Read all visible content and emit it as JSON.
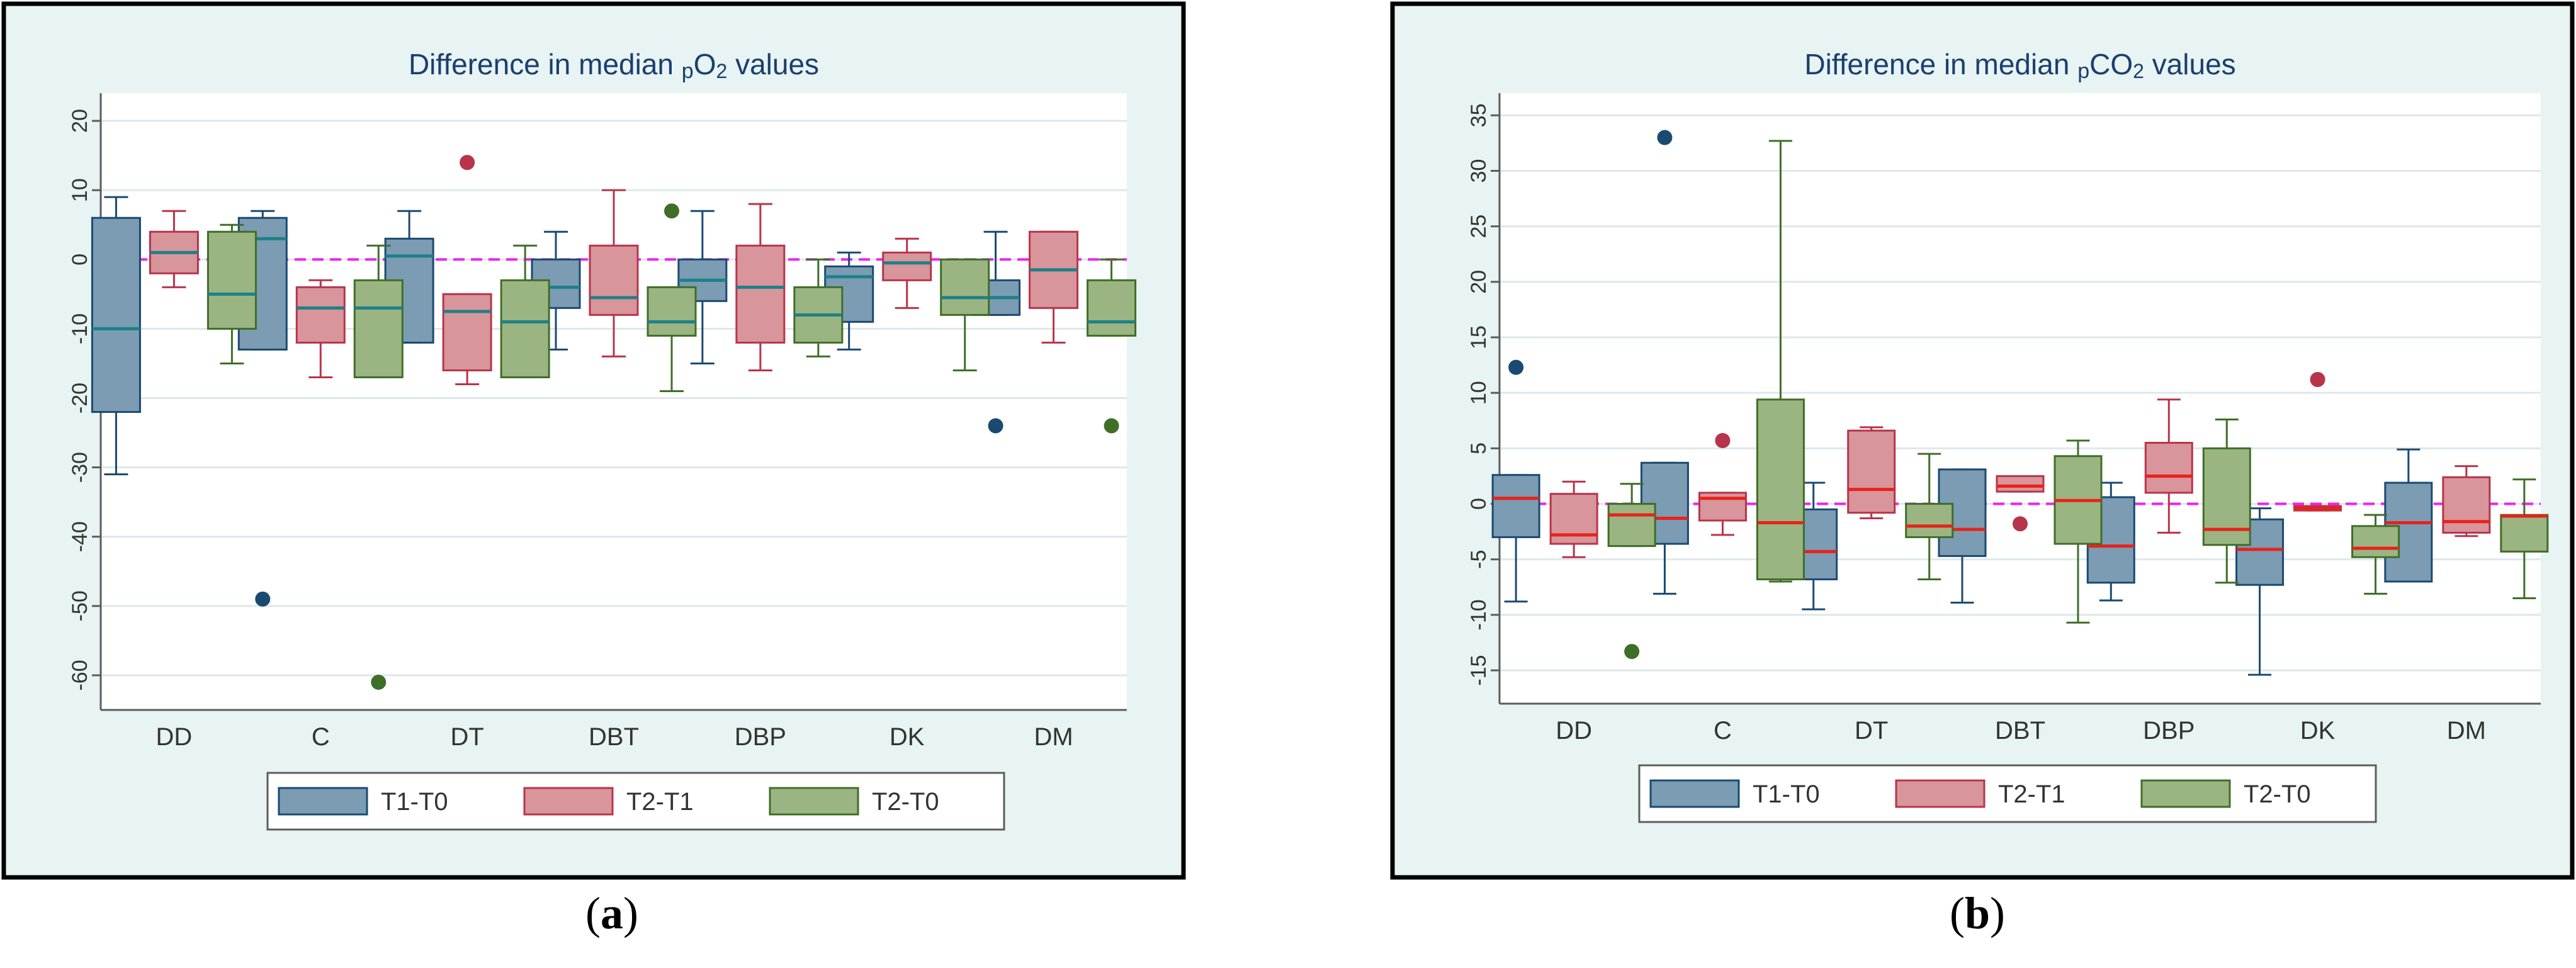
{
  "captions": [
    {
      "open": "(",
      "letter": "a",
      "close": ")"
    },
    {
      "open": "(",
      "letter": "b",
      "close": ")"
    }
  ],
  "colors": {
    "background": "#e8f3f3",
    "frame": "#000000",
    "grid": "#dfe7ea",
    "axis": "#5c5c5c",
    "reference_line": "#ee22ee",
    "series": [
      {
        "fill": "#7b9cb3",
        "stroke": "#1a4a72"
      },
      {
        "fill": "#d8959b",
        "stroke": "#b8344a"
      },
      {
        "fill": "#9bb582",
        "stroke": "#3f6e28"
      }
    ],
    "median_panel_a": "#1e8088",
    "median_panel_b": "#e8221a"
  },
  "chart_data": [
    {
      "type": "box",
      "title": "Difference in median pO2 values",
      "title_parts": {
        "prefix": "Difference in median ",
        "p": "p",
        "gas": "O",
        "sub": "2",
        "suffix": " values"
      },
      "ylim": [
        -65,
        24
      ],
      "yticks": [
        20,
        10,
        0,
        -10,
        -20,
        -30,
        -40,
        -50,
        -60
      ],
      "reference_line": 0,
      "categories": [
        "DD",
        "C",
        "DT",
        "DBT",
        "DBP",
        "DK",
        "DM"
      ],
      "legend": [
        "T1-T0",
        "T2-T1",
        "T2-T0"
      ],
      "series": [
        {
          "name": "T1-T0",
          "boxes": [
            {
              "min": -31,
              "q1": -22,
              "median": -10,
              "q3": 6,
              "max": 9,
              "outliers": []
            },
            {
              "min": -13,
              "q1": -13,
              "median": 3,
              "q3": 6,
              "max": 7,
              "outliers": [
                -49
              ]
            },
            {
              "min": -12,
              "q1": -12,
              "median": 0.5,
              "q3": 3,
              "max": 7,
              "outliers": []
            },
            {
              "min": -13,
              "q1": -7,
              "median": -4,
              "q3": 0,
              "max": 4,
              "outliers": []
            },
            {
              "min": -15,
              "q1": -6,
              "median": -3,
              "q3": 0,
              "max": 7,
              "outliers": []
            },
            {
              "min": -13,
              "q1": -9,
              "median": -2.5,
              "q3": -1,
              "max": 1,
              "outliers": []
            },
            {
              "min": -8,
              "q1": -8,
              "median": -5.5,
              "q3": -3,
              "max": 4,
              "outliers": [
                -24
              ]
            }
          ]
        },
        {
          "name": "T2-T1",
          "boxes": [
            {
              "min": -4,
              "q1": -2,
              "median": 1,
              "q3": 4,
              "max": 7,
              "outliers": []
            },
            {
              "min": -17,
              "q1": -12,
              "median": -7,
              "q3": -4,
              "max": -3,
              "outliers": []
            },
            {
              "min": -18,
              "q1": -16,
              "median": -7.5,
              "q3": -5,
              "max": -5,
              "outliers": [
                14
              ]
            },
            {
              "min": -14,
              "q1": -8,
              "median": -5.5,
              "q3": 2,
              "max": 10,
              "outliers": []
            },
            {
              "min": -16,
              "q1": -12,
              "median": -4,
              "q3": 2,
              "max": 8,
              "outliers": []
            },
            {
              "min": -7,
              "q1": -3,
              "median": -0.5,
              "q3": 1,
              "max": 3,
              "outliers": []
            },
            {
              "min": -12,
              "q1": -7,
              "median": -1.5,
              "q3": 4,
              "max": 4,
              "outliers": []
            }
          ]
        },
        {
          "name": "T2-T0",
          "boxes": [
            {
              "min": -15,
              "q1": -10,
              "median": -5,
              "q3": 4,
              "max": 5,
              "outliers": []
            },
            {
              "min": -17,
              "q1": -17,
              "median": -7,
              "q3": -3,
              "max": 2,
              "outliers": [
                -61
              ]
            },
            {
              "min": -17,
              "q1": -17,
              "median": -9,
              "q3": -3,
              "max": 2,
              "outliers": []
            },
            {
              "min": -19,
              "q1": -11,
              "median": -9,
              "q3": -4,
              "max": -4,
              "outliers": [
                7
              ]
            },
            {
              "min": -14,
              "q1": -12,
              "median": -8,
              "q3": -4,
              "max": 0,
              "outliers": []
            },
            {
              "min": -16,
              "q1": -8,
              "median": -5.5,
              "q3": 0,
              "max": 0,
              "outliers": []
            },
            {
              "min": -11,
              "q1": -11,
              "median": -9,
              "q3": -3,
              "max": 0,
              "outliers": [
                -24
              ]
            }
          ]
        }
      ]
    },
    {
      "type": "box",
      "title": "Difference in median pCO2 values",
      "title_parts": {
        "prefix": "Difference in median ",
        "p": "p",
        "gas": "CO",
        "sub": "2",
        "suffix": " values"
      },
      "ylim": [
        -18,
        37
      ],
      "yticks": [
        35,
        30,
        25,
        20,
        15,
        10,
        5,
        0,
        -5,
        -10,
        -15
      ],
      "reference_line": 0,
      "categories": [
        "DD",
        "C",
        "DT",
        "DBT",
        "DBP",
        "DK",
        "DM"
      ],
      "legend": [
        "T1-T0",
        "T2-T1",
        "T2-T0"
      ],
      "series": [
        {
          "name": "T1-T0",
          "boxes": [
            {
              "min": -8.8,
              "q1": -3,
              "median": 0.5,
              "q3": 2.6,
              "max": 2.6,
              "outliers": [
                12.3
              ]
            },
            {
              "min": -8.1,
              "q1": -3.6,
              "median": -1.3,
              "q3": 3.7,
              "max": 3.7,
              "outliers": [
                33
              ]
            },
            {
              "min": -9.5,
              "q1": -6.8,
              "median": -4.3,
              "q3": -0.5,
              "max": 1.9,
              "outliers": []
            },
            {
              "min": -8.9,
              "q1": -4.7,
              "median": -2.3,
              "q3": 3.1,
              "max": 3.1,
              "outliers": []
            },
            {
              "min": -8.7,
              "q1": -7.1,
              "median": -3.8,
              "q3": 0.6,
              "max": 1.9,
              "outliers": []
            },
            {
              "min": -15.4,
              "q1": -7.3,
              "median": -4.1,
              "q3": -1.4,
              "max": -0.4,
              "outliers": []
            },
            {
              "min": -7,
              "q1": -7,
              "median": -1.7,
              "q3": 1.9,
              "max": 4.9,
              "outliers": []
            }
          ]
        },
        {
          "name": "T2-T1",
          "boxes": [
            {
              "min": -4.8,
              "q1": -3.6,
              "median": -2.8,
              "q3": 0.9,
              "max": 2,
              "outliers": []
            },
            {
              "min": -2.8,
              "q1": -1.5,
              "median": 0.5,
              "q3": 1,
              "max": 1,
              "outliers": [
                5.7
              ]
            },
            {
              "min": -1.3,
              "q1": -0.8,
              "median": 1.3,
              "q3": 6.6,
              "max": 6.9,
              "outliers": []
            },
            {
              "min": 1.1,
              "q1": 1.1,
              "median": 1.6,
              "q3": 2.5,
              "max": 2.5,
              "outliers": [
                -1.8
              ]
            },
            {
              "min": -2.6,
              "q1": 1,
              "median": 2.5,
              "q3": 5.5,
              "max": 9.4,
              "outliers": []
            },
            {
              "min": -0.6,
              "q1": -0.6,
              "median": -0.4,
              "q3": -0.2,
              "max": -0.2,
              "outliers": [
                11.2
              ]
            },
            {
              "min": -2.9,
              "q1": -2.6,
              "median": -1.6,
              "q3": 2.4,
              "max": 3.4,
              "outliers": []
            }
          ]
        },
        {
          "name": "T2-T0",
          "boxes": [
            {
              "min": -3.8,
              "q1": -3.8,
              "median": -1,
              "q3": 0,
              "max": 1.8,
              "outliers": [
                -13.3
              ]
            },
            {
              "min": -7,
              "q1": -6.8,
              "median": -1.7,
              "q3": 9.4,
              "max": 32.7,
              "outliers": []
            },
            {
              "min": -6.8,
              "q1": -3,
              "median": -2,
              "q3": 0,
              "max": 4.5,
              "outliers": []
            },
            {
              "min": -10.7,
              "q1": -3.6,
              "median": 0.3,
              "q3": 4.3,
              "max": 5.7,
              "outliers": []
            },
            {
              "min": -7.1,
              "q1": -3.7,
              "median": -2.3,
              "q3": 5,
              "max": 7.6,
              "outliers": []
            },
            {
              "min": -8.1,
              "q1": -4.8,
              "median": -4,
              "q3": -2,
              "max": -1,
              "outliers": []
            },
            {
              "min": -8.5,
              "q1": -4.3,
              "median": -1.1,
              "q3": -1,
              "max": 2.2,
              "outliers": []
            }
          ]
        }
      ]
    }
  ]
}
